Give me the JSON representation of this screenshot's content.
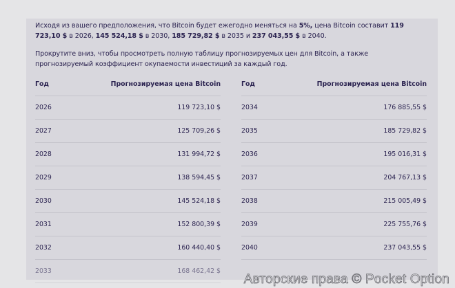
{
  "intro": {
    "p1": [
      {
        "t": "Исходя из вашего предположения, что Bitcoin будет ежегодно меняться на ",
        "b": false
      },
      {
        "t": "5%,",
        "b": true
      },
      {
        "t": " цена Bitcoin составит ",
        "b": false
      },
      {
        "t": "119 723,10 $",
        "b": true
      },
      {
        "t": " в 2026, ",
        "b": false
      },
      {
        "t": "145 524,18 $",
        "b": true
      },
      {
        "t": " в 2030, ",
        "b": false
      },
      {
        "t": "185 729,82 $",
        "b": true
      },
      {
        "t": " в 2035 и ",
        "b": false
      },
      {
        "t": "237 043,55 $",
        "b": true
      },
      {
        "t": " в 2040.",
        "b": false
      }
    ],
    "p2": "Прокрутите вниз, чтобы просмотреть полную таблицу прогнозируемых цен для Bitcoin, а также прогнозируемый коэффициент окупаемости инвестиций за каждый год."
  },
  "table": {
    "col_year": "Год",
    "col_price": "Прогнозируемая цена Bitcoin",
    "left": [
      {
        "year": "2026",
        "price": "119 723,10 $"
      },
      {
        "year": "2027",
        "price": "125 709,26 $"
      },
      {
        "year": "2028",
        "price": "131 994,72 $"
      },
      {
        "year": "2029",
        "price": "138 594,45 $"
      },
      {
        "year": "2030",
        "price": "145 524,18 $"
      },
      {
        "year": "2031",
        "price": "152 800,39 $"
      },
      {
        "year": "2032",
        "price": "160 440,40 $"
      },
      {
        "year": "2033",
        "price": "168 462,42 $"
      }
    ],
    "right": [
      {
        "year": "2034",
        "price": "176 885,55 $"
      },
      {
        "year": "2035",
        "price": "185 729,82 $"
      },
      {
        "year": "2036",
        "price": "195 016,31 $"
      },
      {
        "year": "2037",
        "price": "204 767,13 $"
      },
      {
        "year": "2038",
        "price": "215 005,49 $"
      },
      {
        "year": "2039",
        "price": "225 755,76 $"
      },
      {
        "year": "2040",
        "price": "237 043,55 $"
      }
    ]
  },
  "watermark": "Авторские права © Pocket Option"
}
